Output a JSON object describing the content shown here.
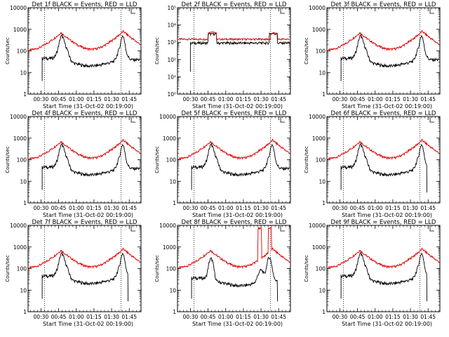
{
  "figure": {
    "xlabel": "Start Time (31-Oct-02 00:19:00)",
    "ylabel": "Counts/sec",
    "x_tick_labels": [
      "00:30",
      "00:45",
      "01:00",
      "01:15",
      "01:30",
      "01:45"
    ],
    "y_tick_labels_4": [
      "10000",
      "1000",
      "100",
      "10",
      "1"
    ],
    "y_tick_labels_6": [
      "10⁵",
      "10⁴",
      "10³",
      "10²",
      "10¹",
      "10⁰"
    ],
    "series_colors": {
      "events": "#000000",
      "lld": "#dd0000"
    }
  },
  "chart_data": [
    {
      "type": "line",
      "title": "Det 1f BLACK = Events, RED = LLD",
      "ylog": true,
      "ylim": [
        1,
        10000
      ],
      "vlines": [
        "00:33",
        "01:38"
      ],
      "series": [
        {
          "key": "events",
          "start": "00:31",
          "shape": "A"
        },
        {
          "key": "lld",
          "shape": "A"
        }
      ]
    },
    {
      "type": "line",
      "title": "Det 2f BLACK = Events, RED = LLD",
      "ylog": true,
      "ylim": [
        1,
        100000
      ],
      "vlines": [
        "00:33",
        "01:38"
      ],
      "series": [
        {
          "key": "events",
          "start": "00:30",
          "shape": "B"
        },
        {
          "key": "lld",
          "shape": "B"
        }
      ]
    },
    {
      "type": "line",
      "title": "Det 3f BLACK = Events, RED = LLD",
      "ylog": true,
      "ylim": [
        1,
        10000
      ],
      "vlines": [
        "00:33",
        "01:38"
      ],
      "series": [
        {
          "key": "events",
          "start": "00:31",
          "shape": "A"
        },
        {
          "key": "lld",
          "shape": "A"
        }
      ]
    },
    {
      "type": "line",
      "title": "Det 4f BLACK = Events, RED = LLD",
      "ylog": true,
      "ylim": [
        1,
        10000
      ],
      "vlines": [
        "00:33",
        "01:38"
      ],
      "series": [
        {
          "key": "events",
          "start": "00:31",
          "shape": "A"
        },
        {
          "key": "lld",
          "shape": "A"
        }
      ]
    },
    {
      "type": "line",
      "title": "Det 5f BLACK = Events, RED = LLD",
      "ylog": true,
      "ylim": [
        1,
        10000
      ],
      "vlines": [
        "00:33",
        "01:38"
      ],
      "series": [
        {
          "key": "events",
          "start": "00:31",
          "shape": "A"
        },
        {
          "key": "lld",
          "shape": "A"
        }
      ]
    },
    {
      "type": "line",
      "title": "Det 6f BLACK = Events, RED = LLD",
      "ylog": true,
      "ylim": [
        1,
        10000
      ],
      "vlines": [
        "00:33",
        "01:38"
      ],
      "series": [
        {
          "key": "events",
          "start": "00:31",
          "shape": "A",
          "end_drop": true
        },
        {
          "key": "lld",
          "shape": "A"
        }
      ]
    },
    {
      "type": "line",
      "title": "Det 7f BLACK = Events, RED = LLD",
      "ylog": true,
      "ylim": [
        1,
        10000
      ],
      "vlines": [
        "00:33",
        "01:38"
      ],
      "series": [
        {
          "key": "events",
          "start": "00:31",
          "shape": "A",
          "end_drop": true
        },
        {
          "key": "lld",
          "shape": "A"
        }
      ]
    },
    {
      "type": "line",
      "title": "Det 8f BLACK = Events, RED = LLD",
      "ylog": true,
      "ylim": [
        1,
        10000
      ],
      "vlines": [
        "00:33",
        "01:38"
      ],
      "series": [
        {
          "key": "events",
          "start": "00:31",
          "shape": "C",
          "end_drop": true
        },
        {
          "key": "lld",
          "shape": "C"
        }
      ]
    },
    {
      "type": "line",
      "title": "Det 9f BLACK = Events, RED = LLD",
      "ylog": true,
      "ylim": [
        1,
        10000
      ],
      "vlines": [
        "00:33",
        "01:38"
      ],
      "series": [
        {
          "key": "events",
          "start": "00:31",
          "shape": "A",
          "end_drop": true
        },
        {
          "key": "lld",
          "shape": "A"
        }
      ]
    }
  ]
}
